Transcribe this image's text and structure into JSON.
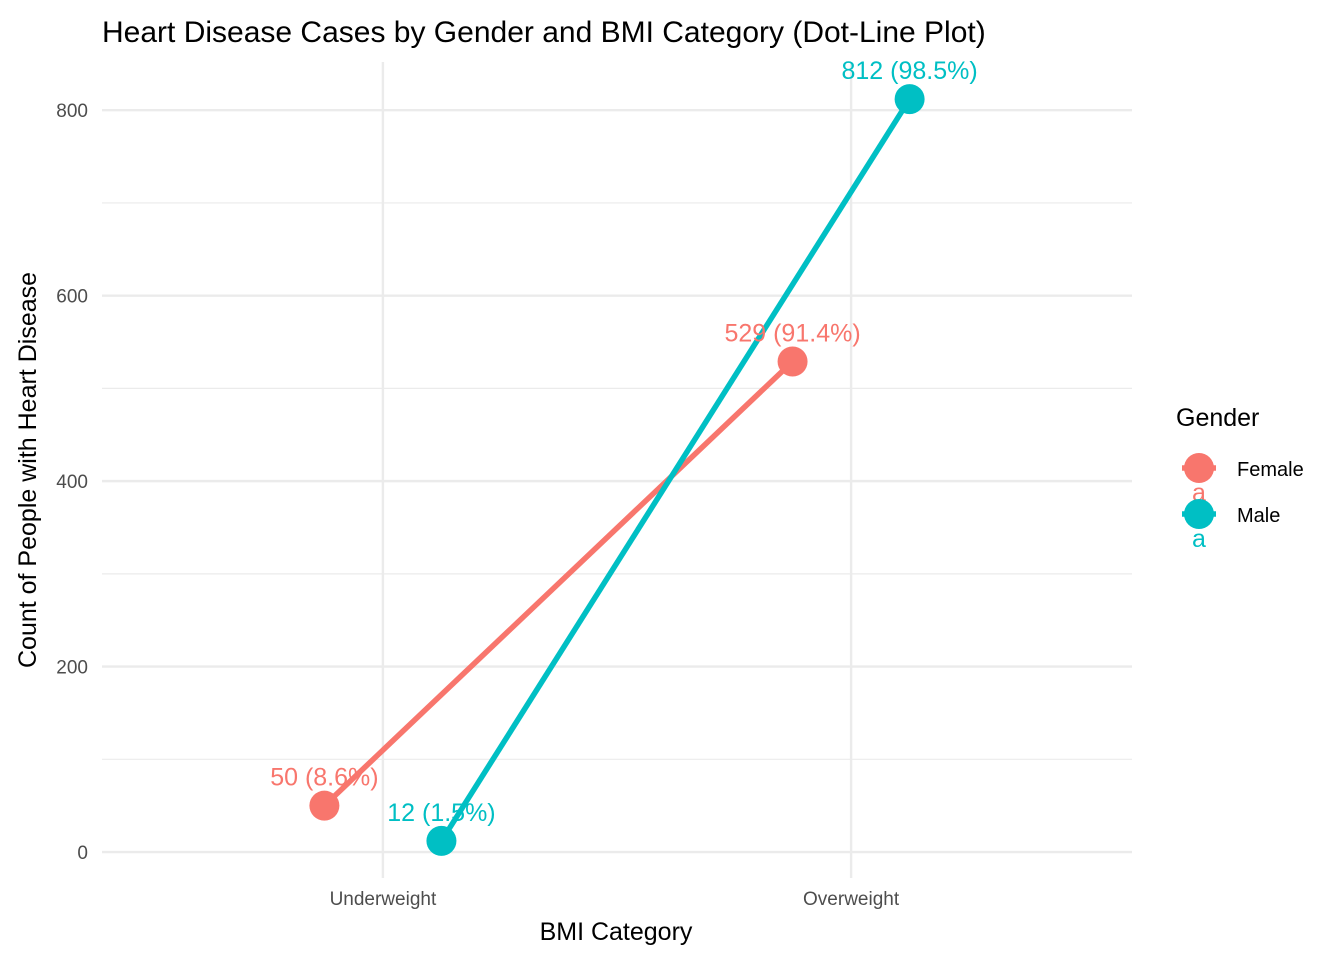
{
  "chart_data": {
    "type": "line",
    "title": "Heart Disease Cases by Gender and BMI Category (Dot-Line Plot)",
    "xlabel": "BMI Category",
    "ylabel": "Count of People with Heart Disease",
    "categories": [
      "Underweight",
      "Overweight"
    ],
    "ylim": [
      -28,
      852
    ],
    "yticks": [
      0,
      200,
      400,
      600,
      800
    ],
    "grid": true,
    "legend": {
      "title": "Gender",
      "placement": "right",
      "key_glyph": "a"
    },
    "series": [
      {
        "name": "Female",
        "color": "#F8766D",
        "dodge": -0.125,
        "values": [
          50,
          529
        ],
        "labels": [
          "50 (8.6%)",
          "529 (91.4%)"
        ]
      },
      {
        "name": "Male",
        "color": "#00BFC4",
        "dodge": 0.125,
        "values": [
          12,
          812
        ],
        "labels": [
          "12 (1.5%)",
          "812 (98.5%)"
        ]
      }
    ]
  }
}
